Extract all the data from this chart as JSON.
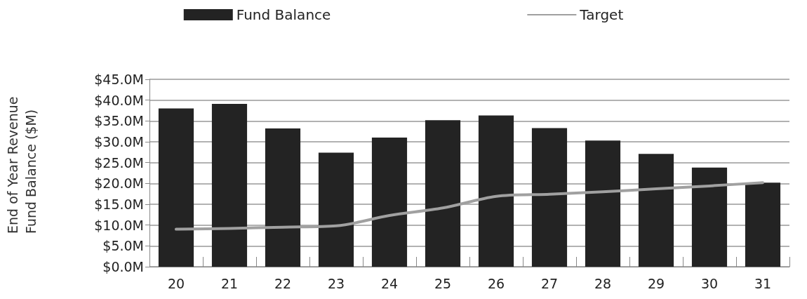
{
  "chart_data": {
    "type": "bar",
    "ylabel": "End of Year Revenue Fund Balance ($M)",
    "categories": [
      "20",
      "21",
      "22",
      "23",
      "24",
      "25",
      "26",
      "27",
      "28",
      "29",
      "30",
      "31"
    ],
    "series": [
      {
        "name": "Fund Balance",
        "color": "#232323",
        "values": [
          38.0,
          39.1,
          33.2,
          27.4,
          31.0,
          35.2,
          36.3,
          33.3,
          30.3,
          27.1,
          23.8,
          20.2
        ]
      },
      {
        "name": "Target",
        "type": "line",
        "color": "#a0a0a0",
        "values": [
          9.0,
          9.2,
          9.5,
          9.8,
          12.3,
          14.1,
          16.9,
          17.4,
          18.0,
          18.7,
          19.4,
          20.2
        ],
        "marker": "none",
        "line_style": "solid"
      }
    ],
    "ylim": [
      0,
      45
    ],
    "yticks": [
      {
        "value": 0,
        "label": "$0.0M"
      },
      {
        "value": 5,
        "label": "$5.0M"
      },
      {
        "value": 10,
        "label": "$10.0M"
      },
      {
        "value": 15,
        "label": "$15.0M"
      },
      {
        "value": 20,
        "label": "$20.0M"
      },
      {
        "value": 25,
        "label": "$25.0M"
      },
      {
        "value": 30,
        "label": "$30.0M"
      },
      {
        "value": 35,
        "label": "$35.0M"
      },
      {
        "value": 40,
        "label": "$40.0M"
      },
      {
        "value": 45,
        "label": "$45.0M"
      }
    ],
    "grid": "y",
    "legend": "top"
  }
}
